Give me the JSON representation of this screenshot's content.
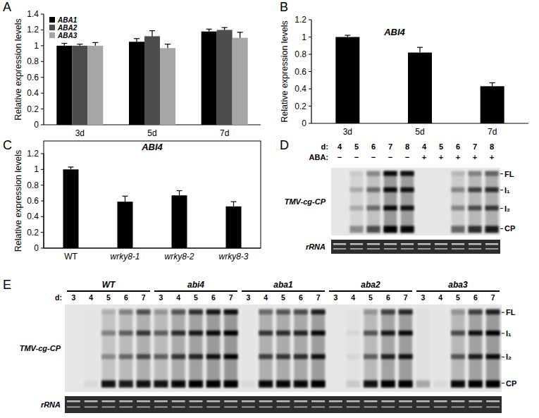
{
  "chart_data": [
    {
      "type": "bar",
      "panel_label": "A",
      "y_label": "Relative expression levels",
      "categories": [
        "3d",
        "5d",
        "7d"
      ],
      "series": [
        {
          "name": "ABA1",
          "color": "#000000",
          "values": [
            1.0,
            1.05,
            1.18
          ],
          "errors": [
            0.03,
            0.04,
            0.03
          ]
        },
        {
          "name": "ABA2",
          "color": "#4d4d4d",
          "values": [
            1.0,
            1.12,
            1.2
          ],
          "errors": [
            0.02,
            0.07,
            0.03
          ]
        },
        {
          "name": "ABA3",
          "color": "#a6a6a6",
          "values": [
            1.0,
            0.97,
            1.1
          ],
          "errors": [
            0.04,
            0.05,
            0.07
          ]
        }
      ],
      "ylim": [
        0,
        1.4
      ],
      "yticks": [
        0,
        0.2,
        0.4,
        0.6,
        0.8,
        1,
        1.2,
        1.4
      ],
      "legend": "upper left"
    },
    {
      "type": "bar",
      "panel_label": "B",
      "title": "ABI4",
      "y_label": "Relative expression levels",
      "categories": [
        "3d",
        "5d",
        "7d"
      ],
      "values": [
        1.0,
        0.82,
        0.43
      ],
      "errors": [
        0.02,
        0.06,
        0.04
      ],
      "color": "#000000",
      "ylim": [
        0,
        1.2
      ],
      "yticks": [
        0,
        0.2,
        0.4,
        0.6,
        0.8,
        1,
        1.2
      ]
    },
    {
      "type": "bar",
      "panel_label": "C",
      "title": "ABI4",
      "y_label": "Relative expression levels",
      "categories": [
        "WT",
        "wrky8-1",
        "wrky8-2",
        "wrky8-3"
      ],
      "values": [
        1.0,
        0.59,
        0.67,
        0.53
      ],
      "errors": [
        0.03,
        0.07,
        0.06,
        0.06
      ],
      "color": "#000000",
      "ylim": [
        0,
        1.2
      ],
      "yticks": [
        0,
        0.2,
        0.4,
        0.6,
        0.8,
        1,
        1.2
      ]
    }
  ],
  "blots": [
    {
      "panel_label": "D",
      "row_label": "TMV-cg-CP",
      "loading_label": "rRNA",
      "band_labels": [
        "FL",
        "I₁",
        "I₂",
        "CP"
      ],
      "lane_rows": [
        {
          "label": "d:",
          "values": [
            "4",
            "5",
            "6",
            "7",
            "8",
            "4",
            "5",
            "6",
            "7",
            "8"
          ]
        },
        {
          "label": "ABA:",
          "values": [
            "−",
            "−",
            "−",
            "−",
            "−",
            "+",
            "+",
            "+",
            "+",
            "+"
          ]
        }
      ],
      "intensity": [
        [
          0,
          0,
          0,
          0
        ],
        [
          0.05,
          0.2,
          0.2,
          0.35
        ],
        [
          0.3,
          0.45,
          0.45,
          0.6
        ],
        [
          0.95,
          0.95,
          0.95,
          1
        ],
        [
          0.9,
          0.9,
          0.9,
          0.95
        ],
        [
          0,
          0,
          0,
          0
        ],
        [
          0,
          0,
          0,
          0
        ],
        [
          0.1,
          0.35,
          0.35,
          0.5
        ],
        [
          0.3,
          0.65,
          0.6,
          0.75
        ],
        [
          0.45,
          0.75,
          0.7,
          0.85
        ]
      ]
    },
    {
      "panel_label": "E",
      "row_label": "TMV-cg-CP",
      "loading_label": "rRNA",
      "band_labels": [
        "FL",
        "I₁",
        "I₂",
        "CP"
      ],
      "day_label": "d:",
      "groups": [
        {
          "name": "WT",
          "days": [
            "3",
            "4",
            "5",
            "6",
            "7"
          ],
          "intensity": [
            [
              0,
              0,
              0,
              0
            ],
            [
              0,
              0,
              0,
              0.05
            ],
            [
              0.1,
              0.35,
              0.3,
              0.9
            ],
            [
              0.3,
              0.5,
              0.45,
              0.85
            ],
            [
              0.55,
              0.7,
              0.6,
              0.9
            ]
          ]
        },
        {
          "name": "abi4",
          "days": [
            "3",
            "4",
            "5",
            "6",
            "7"
          ],
          "intensity": [
            [
              0.2,
              0.5,
              0.5,
              0.9
            ],
            [
              0.5,
              0.75,
              0.7,
              0.95
            ],
            [
              0.7,
              0.85,
              0.8,
              1
            ],
            [
              0.85,
              0.95,
              0.9,
              1
            ],
            [
              0.9,
              1,
              1,
              1
            ]
          ]
        },
        {
          "name": "aba1",
          "days": [
            "3",
            "4",
            "5",
            "6",
            "7"
          ],
          "intensity": [
            [
              0,
              0,
              0,
              0.05
            ],
            [
              0.4,
              0.7,
              0.65,
              0.95
            ],
            [
              0.5,
              0.75,
              0.7,
              0.95
            ],
            [
              0.55,
              0.8,
              0.75,
              0.95
            ],
            [
              0.8,
              0.95,
              0.9,
              1
            ]
          ]
        },
        {
          "name": "aba2",
          "days": [
            "3",
            "4",
            "5",
            "6",
            "7"
          ],
          "intensity": [
            [
              0,
              0,
              0,
              0
            ],
            [
              0,
              0.05,
              0.05,
              0.1
            ],
            [
              0.2,
              0.55,
              0.5,
              0.9
            ],
            [
              0.6,
              0.85,
              0.8,
              1
            ],
            [
              0.75,
              0.95,
              0.9,
              1
            ]
          ]
        },
        {
          "name": "aba3",
          "days": [
            "3",
            "4",
            "5",
            "6",
            "7"
          ],
          "intensity": [
            [
              0,
              0,
              0,
              0.25
            ],
            [
              0,
              0,
              0,
              0.05
            ],
            [
              0.2,
              0.6,
              0.55,
              0.95
            ],
            [
              0.6,
              0.9,
              0.85,
              1
            ],
            [
              0.8,
              1,
              0.95,
              1
            ]
          ]
        }
      ]
    }
  ]
}
